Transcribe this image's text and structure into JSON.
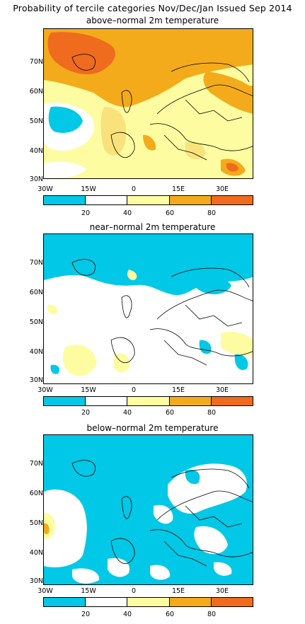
{
  "title": "Probability of tercile categories Nov/Dec/Jan Issued Sep 2014",
  "colors": {
    "cyan": "#00c8e6",
    "white": "#ffffff",
    "light_yellow": "#fefca0",
    "yellow": "#f9e27c",
    "orange": "#f4ab1b",
    "dark_orange": "#ef6b1e"
  },
  "lat_labels": [
    "70N",
    "60N",
    "50N",
    "40N",
    "30N"
  ],
  "lon_labels": [
    "30W",
    "15W",
    "0",
    "15E",
    "30E"
  ],
  "colorbar_ticks": [
    "20",
    "40",
    "60",
    "80"
  ],
  "panels": [
    {
      "title": "above–normal 2m temperature",
      "category": "above"
    },
    {
      "title": "near–normal 2m temperature",
      "category": "near"
    },
    {
      "title": "below–normal 2m temperature",
      "category": "below"
    }
  ]
}
